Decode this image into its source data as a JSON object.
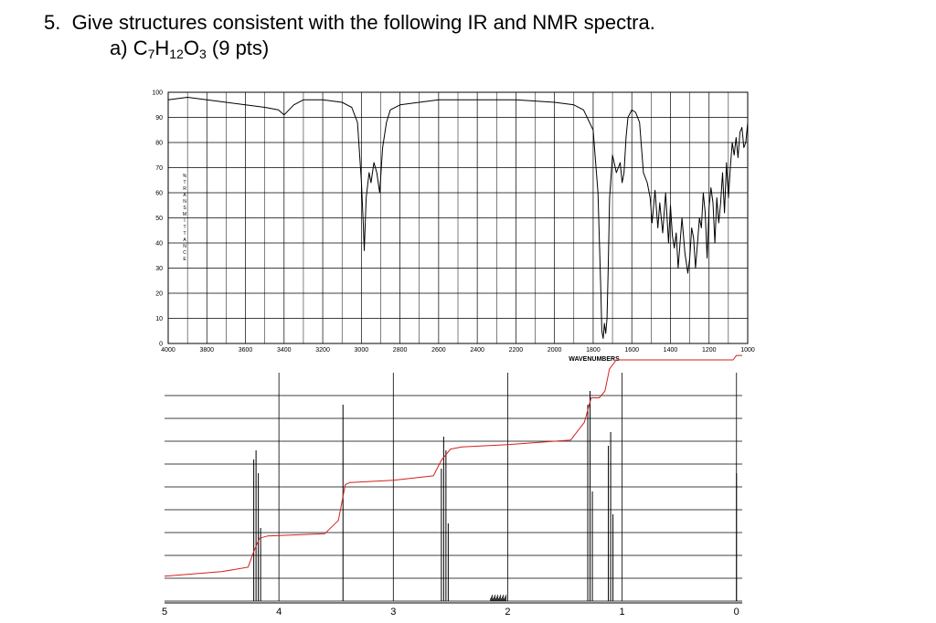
{
  "question": {
    "number_label": "5.",
    "title": "Give structures consistent with the following IR and NMR spectra.",
    "part_label": "a)",
    "formula_parts": [
      "C",
      "7",
      "H",
      "12",
      "O",
      "3"
    ],
    "points": "(9 pts)"
  },
  "chart_data": [
    {
      "type": "line",
      "title": "",
      "xlabel": "WAVENUMBERS",
      "ylabel": "%TRANSMITTANCE",
      "xlim": [
        4000,
        1000
      ],
      "ylim": [
        0,
        100
      ],
      "x_tick_labels": [
        "4000",
        "3800",
        "3600",
        "3400",
        "3200",
        "3000",
        "2800",
        "2600",
        "2400",
        "2200",
        "2000",
        "1800",
        "1600",
        "1400",
        "1200",
        "1000"
      ],
      "y_tick_labels": [
        "100",
        "90",
        "80",
        "70",
        "60",
        "50",
        "40",
        "30",
        "20",
        "10",
        "0"
      ],
      "grid": true,
      "series": [
        {
          "x": [
            4000,
            3900,
            3800,
            3700,
            3600,
            3500,
            3430,
            3400,
            3350,
            3300,
            3200,
            3100,
            3050,
            3020,
            3000,
            2990,
            2985,
            2975,
            2960,
            2950,
            2935,
            2920,
            2905,
            2890,
            2870,
            2850,
            2800,
            2700,
            2600,
            2400,
            2200,
            2000,
            1900,
            1850,
            1800,
            1775,
            1760,
            1755,
            1748,
            1742,
            1735,
            1728,
            1722,
            1715,
            1700,
            1680,
            1660,
            1650,
            1640,
            1630,
            1620,
            1600,
            1580,
            1560,
            1540,
            1520,
            1505,
            1495,
            1480,
            1465,
            1455,
            1440,
            1425,
            1410,
            1400,
            1390,
            1380,
            1370,
            1360,
            1350,
            1340,
            1325,
            1310,
            1300,
            1290,
            1280,
            1270,
            1260,
            1250,
            1240,
            1230,
            1220,
            1210,
            1200,
            1190,
            1180,
            1170,
            1160,
            1150,
            1140,
            1130,
            1120,
            1110,
            1100,
            1090,
            1080,
            1070,
            1060,
            1050,
            1040,
            1030,
            1020,
            1010,
            1000
          ],
          "y": [
            97,
            98,
            97,
            96,
            95,
            94,
            93,
            91,
            95,
            97,
            97,
            96,
            94,
            88,
            65,
            48,
            37,
            58,
            68,
            64,
            72,
            68,
            60,
            78,
            88,
            93,
            95,
            96,
            97,
            97,
            97,
            96,
            95,
            93,
            85,
            60,
            20,
            5,
            2,
            8,
            4,
            10,
            30,
            58,
            75,
            68,
            72,
            64,
            68,
            82,
            90,
            93,
            92,
            88,
            68,
            64,
            58,
            48,
            61,
            46,
            56,
            44,
            60,
            40,
            55,
            43,
            38,
            44,
            30,
            40,
            50,
            36,
            28,
            34,
            46,
            42,
            30,
            40,
            50,
            46,
            60,
            52,
            34,
            54,
            62,
            56,
            40,
            58,
            48,
            56,
            68,
            52,
            72,
            58,
            70,
            80,
            75,
            82,
            74,
            84,
            86,
            78,
            80,
            88
          ]
        }
      ]
    },
    {
      "type": "line",
      "title": "",
      "xlabel": "",
      "ylabel": "",
      "xlim": [
        5.0,
        -0.05
      ],
      "x_tick_labels": [
        "5",
        "4",
        "3",
        "2",
        "1",
        "0"
      ],
      "grid": true,
      "peaks": [
        {
          "ppm": 4.22,
          "height": 0.62
        },
        {
          "ppm": 4.2,
          "height": 0.66
        },
        {
          "ppm": 4.18,
          "height": 0.56
        },
        {
          "ppm": 4.16,
          "height": 0.32
        },
        {
          "ppm": 3.44,
          "height": 0.86
        },
        {
          "ppm": 2.58,
          "height": 0.58
        },
        {
          "ppm": 2.56,
          "height": 0.72
        },
        {
          "ppm": 2.54,
          "height": 0.66
        },
        {
          "ppm": 2.52,
          "height": 0.34
        },
        {
          "ppm": 1.3,
          "height": 0.86
        },
        {
          "ppm": 1.28,
          "height": 0.92
        },
        {
          "ppm": 1.26,
          "height": 0.48
        },
        {
          "ppm": 1.12,
          "height": 0.68
        },
        {
          "ppm": 1.1,
          "height": 0.74
        },
        {
          "ppm": 1.08,
          "height": 0.38
        },
        {
          "ppm": 0.0,
          "height": 0.56
        }
      ],
      "integral": {
        "x": [
          5.0,
          4.5,
          4.27,
          4.22,
          4.17,
          4.1,
          3.6,
          3.48,
          3.42,
          3.38,
          3.0,
          2.65,
          2.58,
          2.5,
          2.4,
          2.0,
          1.45,
          1.33,
          1.27,
          1.2,
          1.15,
          1.11,
          1.05,
          0.9,
          0.5,
          0.03,
          0.0,
          -0.05
        ],
        "level": [
          0.03,
          0.05,
          0.07,
          0.14,
          0.2,
          0.21,
          0.22,
          0.28,
          0.44,
          0.45,
          0.46,
          0.48,
          0.55,
          0.6,
          0.61,
          0.62,
          0.64,
          0.72,
          0.83,
          0.83,
          0.86,
          0.96,
          1.0,
          1.0,
          1.0,
          1.0,
          1.02,
          1.02
        ]
      },
      "colors": {
        "integral": "#d41f1f",
        "spectrum": "#000000"
      }
    }
  ]
}
